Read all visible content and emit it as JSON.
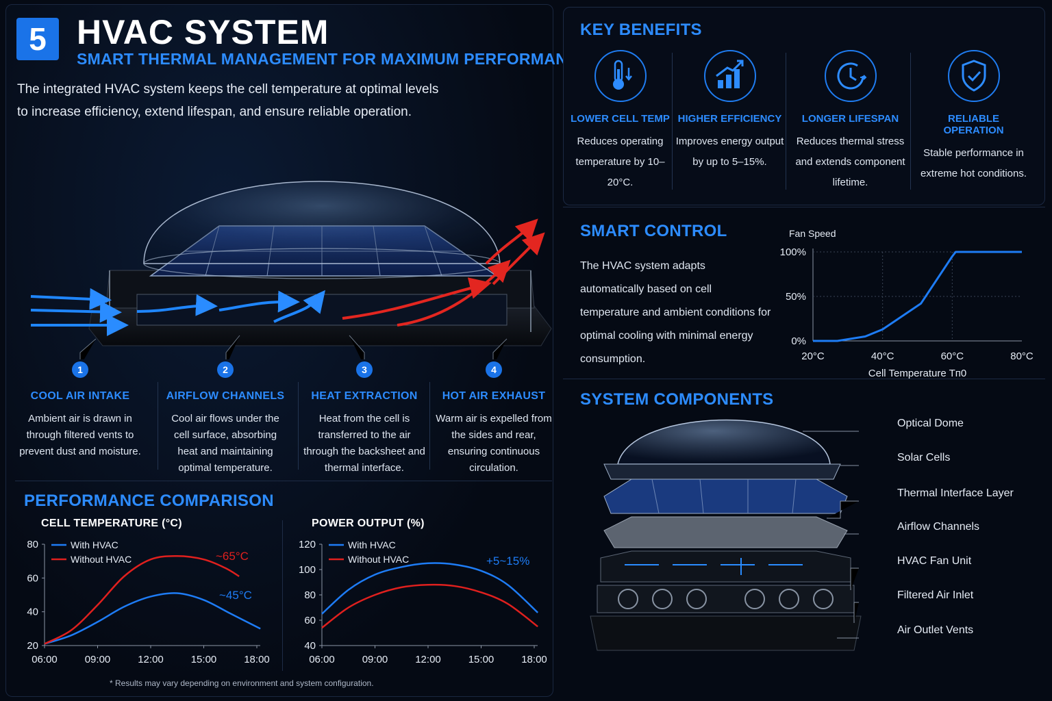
{
  "header": {
    "number": "5",
    "title": "HVAC SYSTEM",
    "subtitle": "SMART THERMAL MANAGEMENT FOR MAXIMUM PERFORMANCE",
    "intro_line1": "The integrated HVAC system keeps the cell temperature at optimal levels",
    "intro_line2": "to increase efficiency, extend lifespan, and ensure reliable operation."
  },
  "steps": [
    {
      "num": "1",
      "title": "COOL AIR INTAKE",
      "desc": "Ambient air is drawn in through filtered vents to prevent dust and moisture."
    },
    {
      "num": "2",
      "title": "AIRFLOW CHANNELS",
      "desc": "Cool air flows under the cell surface, absorbing heat and maintaining optimal temperature."
    },
    {
      "num": "3",
      "title": "HEAT EXTRACTION",
      "desc": "Heat from the cell is transferred to the air through the backsheet and thermal interface."
    },
    {
      "num": "4",
      "title": "HOT AIR EXHAUST",
      "desc": "Warm air is expelled from the sides and rear, ensuring continuous circulation."
    }
  ],
  "performance": {
    "title": "PERFORMANCE COMPARISON",
    "footnote": "* Results may vary depending on environment and system configuration."
  },
  "benefits": {
    "title": "KEY BENEFITS",
    "items": [
      {
        "icon": "thermometer-icon",
        "title": "LOWER CELL TEMP",
        "desc": "Reduces operating temperature by 10–20°C."
      },
      {
        "icon": "bar-chart-icon",
        "title": "HIGHER EFFICIENCY",
        "desc": "Improves energy output by up to 5–15%."
      },
      {
        "icon": "clock-icon",
        "title": "LONGER LIFESPAN",
        "desc": "Reduces thermal stress and extends component lifetime."
      },
      {
        "icon": "shield-check-icon",
        "title": "RELIABLE OPERATION",
        "desc": "Stable performance in extreme hot conditions."
      }
    ]
  },
  "smart_control": {
    "title": "SMART CONTROL",
    "desc": "The HVAC system adapts automatically based on cell temperature and ambient conditions for optimal cooling with minimal energy consumption."
  },
  "components": {
    "title": "SYSTEM COMPONENTS",
    "labels": [
      "Optical Dome",
      "Solar Cells",
      "Thermal Interface Layer",
      "Airflow Channels",
      "HVAC Fan Unit",
      "Filtered Air Inlet",
      "Air Outlet Vents"
    ]
  },
  "colors": {
    "accent": "#2d8cff",
    "with_hvac": "#1e7cf5",
    "without_hvac": "#e0201e"
  },
  "chart_data": [
    {
      "type": "line",
      "title": "CELL TEMPERATURE (°C)",
      "x": [
        "06:00",
        "09:00",
        "12:00",
        "15:00",
        "18:00"
      ],
      "ylim": [
        20,
        80
      ],
      "yticks": [
        20,
        40,
        60,
        80
      ],
      "series": [
        {
          "name": "With HVAC",
          "color": "#1e7cf5",
          "x": [
            6,
            7.5,
            9,
            10.5,
            12,
            13.5,
            15,
            16.5,
            18.2
          ],
          "y": [
            21,
            26,
            34,
            43,
            49,
            51,
            47,
            39,
            30
          ]
        },
        {
          "name": "Without HVAC",
          "color": "#e0201e",
          "x": [
            6,
            7.5,
            9,
            10.5,
            12,
            13.5,
            15,
            16.2,
            17
          ],
          "y": [
            21,
            29,
            44,
            61,
            71,
            73,
            71,
            66,
            61
          ]
        }
      ],
      "annotations": [
        {
          "text": "~65°C",
          "color": "#e0201e"
        },
        {
          "text": "~45°C",
          "color": "#1e7cf5"
        }
      ],
      "legend": "top-left"
    },
    {
      "type": "line",
      "title": "POWER OUTPUT (%)",
      "x": [
        "06:00",
        "09:00",
        "12:00",
        "15:00",
        "18:00"
      ],
      "ylim": [
        40,
        120
      ],
      "yticks": [
        40,
        60,
        80,
        100,
        120
      ],
      "series": [
        {
          "name": "With HVAC",
          "color": "#1e7cf5",
          "x": [
            6,
            7.5,
            9,
            10.5,
            12,
            13.5,
            15,
            16.5,
            18.2
          ],
          "y": [
            65,
            84,
            96,
            102,
            105,
            104,
            99,
            88,
            66
          ]
        },
        {
          "name": "Without HVAC",
          "color": "#e0201e",
          "x": [
            6,
            7.5,
            9,
            10.5,
            12,
            13.5,
            15,
            16.5,
            18.2
          ],
          "y": [
            54,
            70,
            80,
            86,
            88,
            87,
            82,
            73,
            55
          ]
        }
      ],
      "annotations": [
        {
          "text": "+5~15%",
          "color": "#1e7cf5"
        }
      ],
      "legend": "top-left"
    },
    {
      "type": "line",
      "title": "",
      "ylabel": "Fan Speed",
      "xlabel": "Cell Temperature Tп0",
      "x": [
        "20°C",
        "40°C",
        "60°C",
        "80°C"
      ],
      "y_ticks": [
        "0%",
        "50%",
        "100%"
      ],
      "xlim": [
        20,
        80
      ],
      "ylim": [
        0,
        100
      ],
      "series": [
        {
          "name": "",
          "color": "#1e7cf5",
          "x": [
            20,
            27,
            35,
            40,
            51,
            60,
            61,
            80
          ],
          "y": [
            0,
            0,
            5,
            13,
            42,
            95,
            100,
            100
          ]
        }
      ]
    }
  ]
}
